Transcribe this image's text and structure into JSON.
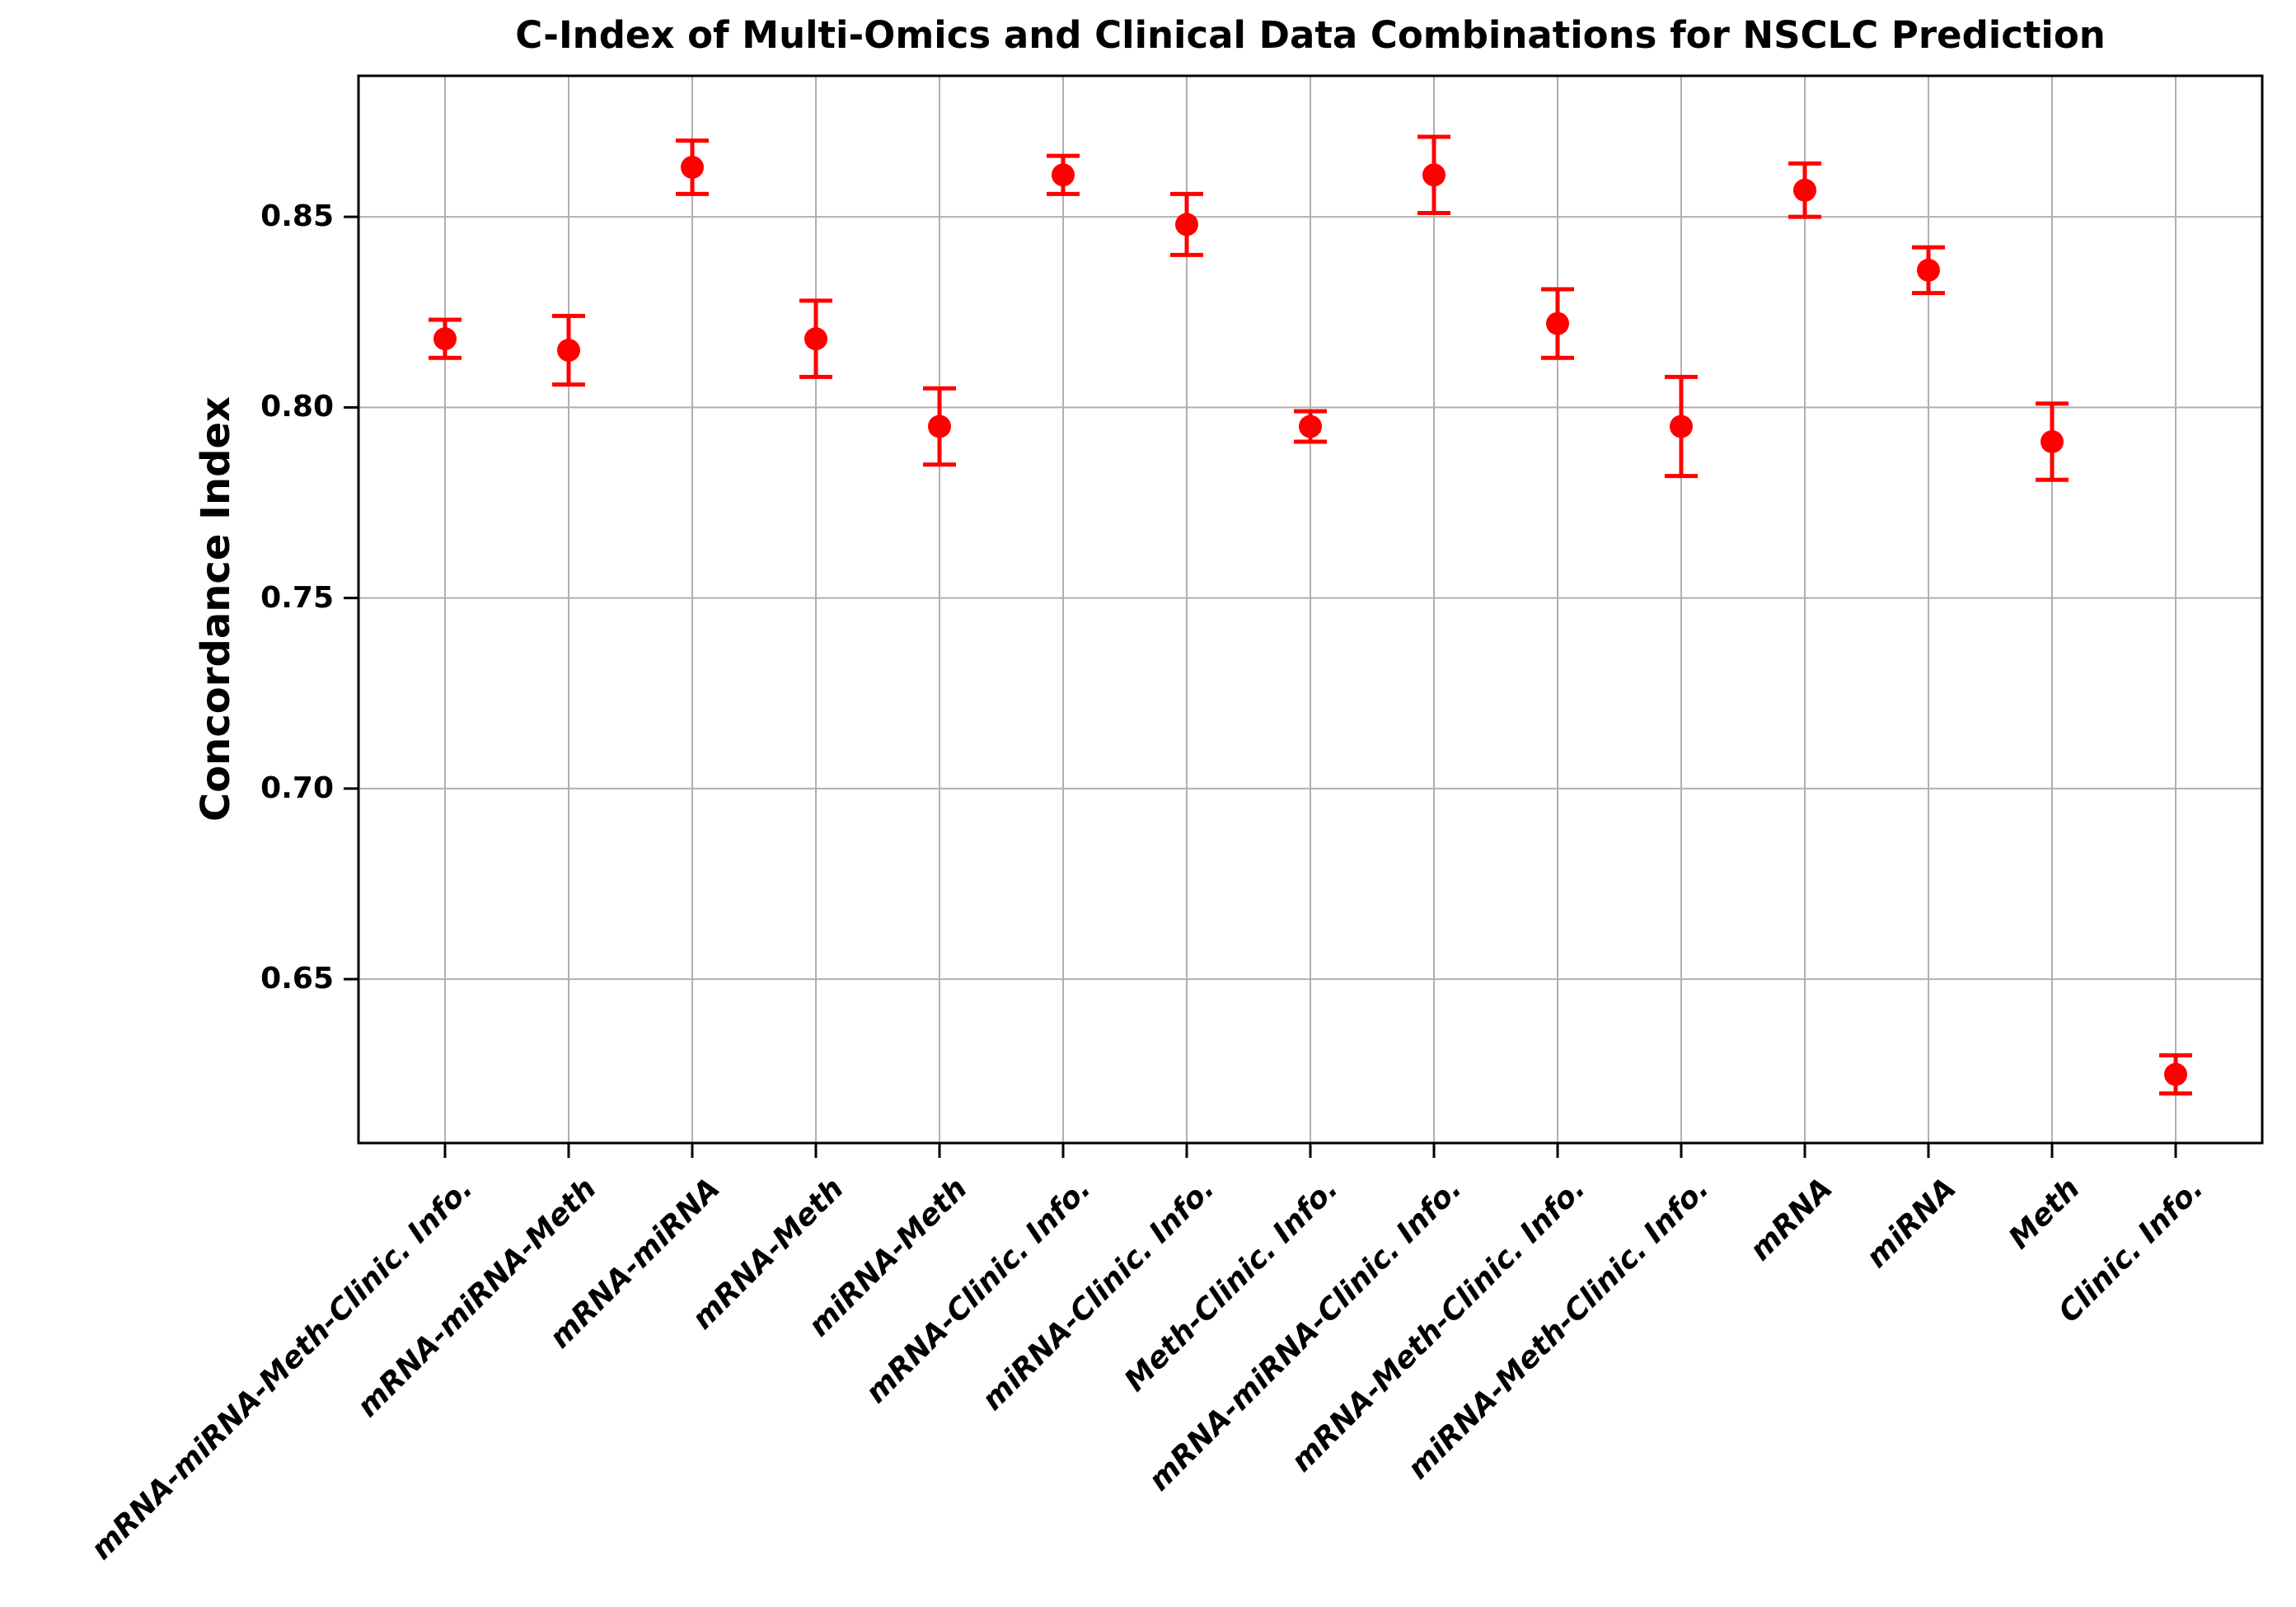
{
  "chart_data": {
    "type": "scatter",
    "subtype": "errorbar",
    "title": "C-Index of Multi-Omics and Clinical Data Combinations for NSCLC Prediction",
    "xlabel": "",
    "ylabel": "Concordance Index",
    "categories": [
      "mRNA-miRNA-Meth-Clinic. Info.",
      "mRNA-miRNA-Meth",
      "mRNA-miRNA",
      "mRNA-Meth",
      "miRNA-Meth",
      "mRNA-Clinic. Info.",
      "miRNA-Clinic. Info.",
      "Meth-Clinic. Info.",
      "mRNA-miRNA-Clinic. Info.",
      "mRNA-Meth-Clinic. Info.",
      "miRNA-Meth-Clinic. Info.",
      "mRNA",
      "miRNA",
      "Meth",
      "Clinic. Info."
    ],
    "series": [
      {
        "name": "C-Index",
        "values": [
          0.818,
          0.815,
          0.863,
          0.818,
          0.795,
          0.861,
          0.848,
          0.795,
          0.861,
          0.822,
          0.795,
          0.857,
          0.836,
          0.791,
          0.625
        ],
        "errors": [
          0.005,
          0.009,
          0.007,
          0.01,
          0.01,
          0.005,
          0.008,
          0.004,
          0.01,
          0.009,
          0.013,
          0.007,
          0.006,
          0.01,
          0.005
        ]
      }
    ],
    "yticks": [
      0.85,
      0.8,
      0.75,
      0.7,
      0.65
    ],
    "ylim": [
      0.607,
      0.887
    ],
    "grid": true,
    "legend": "none",
    "colors": {
      "marker": "#ff0000",
      "errorbar": "#ff0000",
      "grid": "#b0b0b0",
      "axis": "#000000",
      "text": "#000000",
      "background": "#ffffff"
    }
  }
}
